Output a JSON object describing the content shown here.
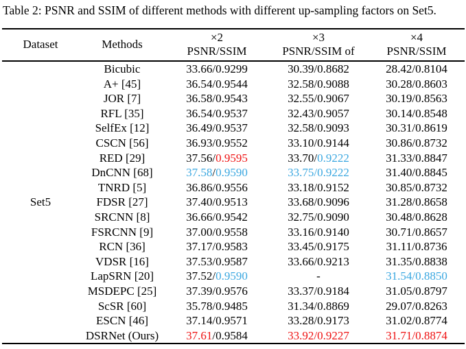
{
  "caption": "Table 2: PSNR and SSIM of different methods with different up-sampling factors on Set5.",
  "colors": {
    "text": "#000000",
    "red": "#ee1111",
    "blue": "#3aa7e0"
  },
  "table": {
    "dataset_header": "Dataset",
    "methods_header": "Methods",
    "factor_columns": [
      {
        "factor": "×2",
        "metric": "PSNR/SSIM"
      },
      {
        "factor": "×3",
        "metric": "PSNR/SSIM of"
      },
      {
        "factor": "×4",
        "metric": "PSNR/SSIM"
      }
    ],
    "dataset_label": "Set5",
    "rows": [
      {
        "method": "Bicubic",
        "cells": [
          [
            [
              "33.66/0.9299",
              "k"
            ]
          ],
          [
            [
              "30.39/0.8682",
              "k"
            ]
          ],
          [
            [
              "28.42/0.8104",
              "k"
            ]
          ]
        ]
      },
      {
        "method": "A+ [45]",
        "cells": [
          [
            [
              "36.54/0.9544",
              "k"
            ]
          ],
          [
            [
              "32.58/0.9088",
              "k"
            ]
          ],
          [
            [
              "30.28/0.8603",
              "k"
            ]
          ]
        ]
      },
      {
        "method": "JOR [7]",
        "cells": [
          [
            [
              "36.58/0.9543",
              "k"
            ]
          ],
          [
            [
              "32.55/0.9067",
              "k"
            ]
          ],
          [
            [
              "30.19/0.8563",
              "k"
            ]
          ]
        ]
      },
      {
        "method": "RFL [35]",
        "cells": [
          [
            [
              "36.54/0.9537",
              "k"
            ]
          ],
          [
            [
              "32.43/0.9057",
              "k"
            ]
          ],
          [
            [
              "30.14/0.8548",
              "k"
            ]
          ]
        ]
      },
      {
        "method": "SelfEx [12]",
        "cells": [
          [
            [
              "36.49/0.9537",
              "k"
            ]
          ],
          [
            [
              "32.58/0.9093",
              "k"
            ]
          ],
          [
            [
              "30.31/0.8619",
              "k"
            ]
          ]
        ]
      },
      {
        "method": "CSCN [56]",
        "cells": [
          [
            [
              "36.93/0.9552",
              "k"
            ]
          ],
          [
            [
              "33.10/0.9144",
              "k"
            ]
          ],
          [
            [
              "30.86/0.8732",
              "k"
            ]
          ]
        ]
      },
      {
        "method": "RED [29]",
        "cells": [
          [
            [
              "37.56/",
              "k"
            ],
            [
              "0.9595",
              "r"
            ]
          ],
          [
            [
              "33.70/",
              "k"
            ],
            [
              "0.9222",
              "b"
            ]
          ],
          [
            [
              "31.33/0.8847",
              "k"
            ]
          ]
        ]
      },
      {
        "method": "DnCNN [68]",
        "cells": [
          [
            [
              "37.58",
              "b"
            ],
            [
              "/",
              "k"
            ],
            [
              "0.9590",
              "b"
            ]
          ],
          [
            [
              "33.75/0.9222",
              "b"
            ]
          ],
          [
            [
              "31.40/0.8845",
              "k"
            ]
          ]
        ]
      },
      {
        "method": "TNRD [5]",
        "cells": [
          [
            [
              "36.86/0.9556",
              "k"
            ]
          ],
          [
            [
              "33.18/0.9152",
              "k"
            ]
          ],
          [
            [
              "30.85/0.8732",
              "k"
            ]
          ]
        ]
      },
      {
        "method": "FDSR [27]",
        "cells": [
          [
            [
              "37.40/0.9513",
              "k"
            ]
          ],
          [
            [
              "33.68/0.9096",
              "k"
            ]
          ],
          [
            [
              "31.28/0.8658",
              "k"
            ]
          ]
        ]
      },
      {
        "method": "SRCNN [8]",
        "cells": [
          [
            [
              "36.66/0.9542",
              "k"
            ]
          ],
          [
            [
              "32.75/0.9090",
              "k"
            ]
          ],
          [
            [
              "30.48/0.8628",
              "k"
            ]
          ]
        ]
      },
      {
        "method": "FSRCNN [9]",
        "cells": [
          [
            [
              "37.00/0.9558",
              "k"
            ]
          ],
          [
            [
              "33.16/0.9140",
              "k"
            ]
          ],
          [
            [
              "30.71/0.8657",
              "k"
            ]
          ]
        ]
      },
      {
        "method": "RCN [36]",
        "cells": [
          [
            [
              "37.17/0.9583",
              "k"
            ]
          ],
          [
            [
              "33.45/0.9175",
              "k"
            ]
          ],
          [
            [
              "31.11/0.8736",
              "k"
            ]
          ]
        ]
      },
      {
        "method": "VDSR [16]",
        "cells": [
          [
            [
              "37.53/0.9587",
              "k"
            ]
          ],
          [
            [
              "33.66/0.9213",
              "k"
            ]
          ],
          [
            [
              "31.35/0.8838",
              "k"
            ]
          ]
        ]
      },
      {
        "method": "LapSRN [20]",
        "cells": [
          [
            [
              "37.52/",
              "k"
            ],
            [
              "0.9590",
              "b"
            ]
          ],
          [
            [
              "-",
              "k"
            ]
          ],
          [
            [
              "31.54/0.8850",
              "b"
            ]
          ]
        ]
      },
      {
        "method": "MSDEPC [25]",
        "cells": [
          [
            [
              "37.39/0.9576",
              "k"
            ]
          ],
          [
            [
              "33.37/0.9184",
              "k"
            ]
          ],
          [
            [
              "31.05/0.8797",
              "k"
            ]
          ]
        ]
      },
      {
        "method": "ScSR [60]",
        "cells": [
          [
            [
              "35.78/0.9485",
              "k"
            ]
          ],
          [
            [
              "31.34/0.8869",
              "k"
            ]
          ],
          [
            [
              "29.07/0.8263",
              "k"
            ]
          ]
        ]
      },
      {
        "method": "ESCN [46]",
        "cells": [
          [
            [
              "37.14/0.9571",
              "k"
            ]
          ],
          [
            [
              "33.28/0.9173",
              "k"
            ]
          ],
          [
            [
              "31.02/0.8774",
              "k"
            ]
          ]
        ]
      },
      {
        "method": "DSRNet (Ours)",
        "cells": [
          [
            [
              "37.61",
              "r"
            ],
            [
              "/0.9584",
              "k"
            ]
          ],
          [
            [
              "33.92/0.9227",
              "r"
            ]
          ],
          [
            [
              "31.71/0.8874",
              "r"
            ]
          ]
        ]
      }
    ]
  }
}
